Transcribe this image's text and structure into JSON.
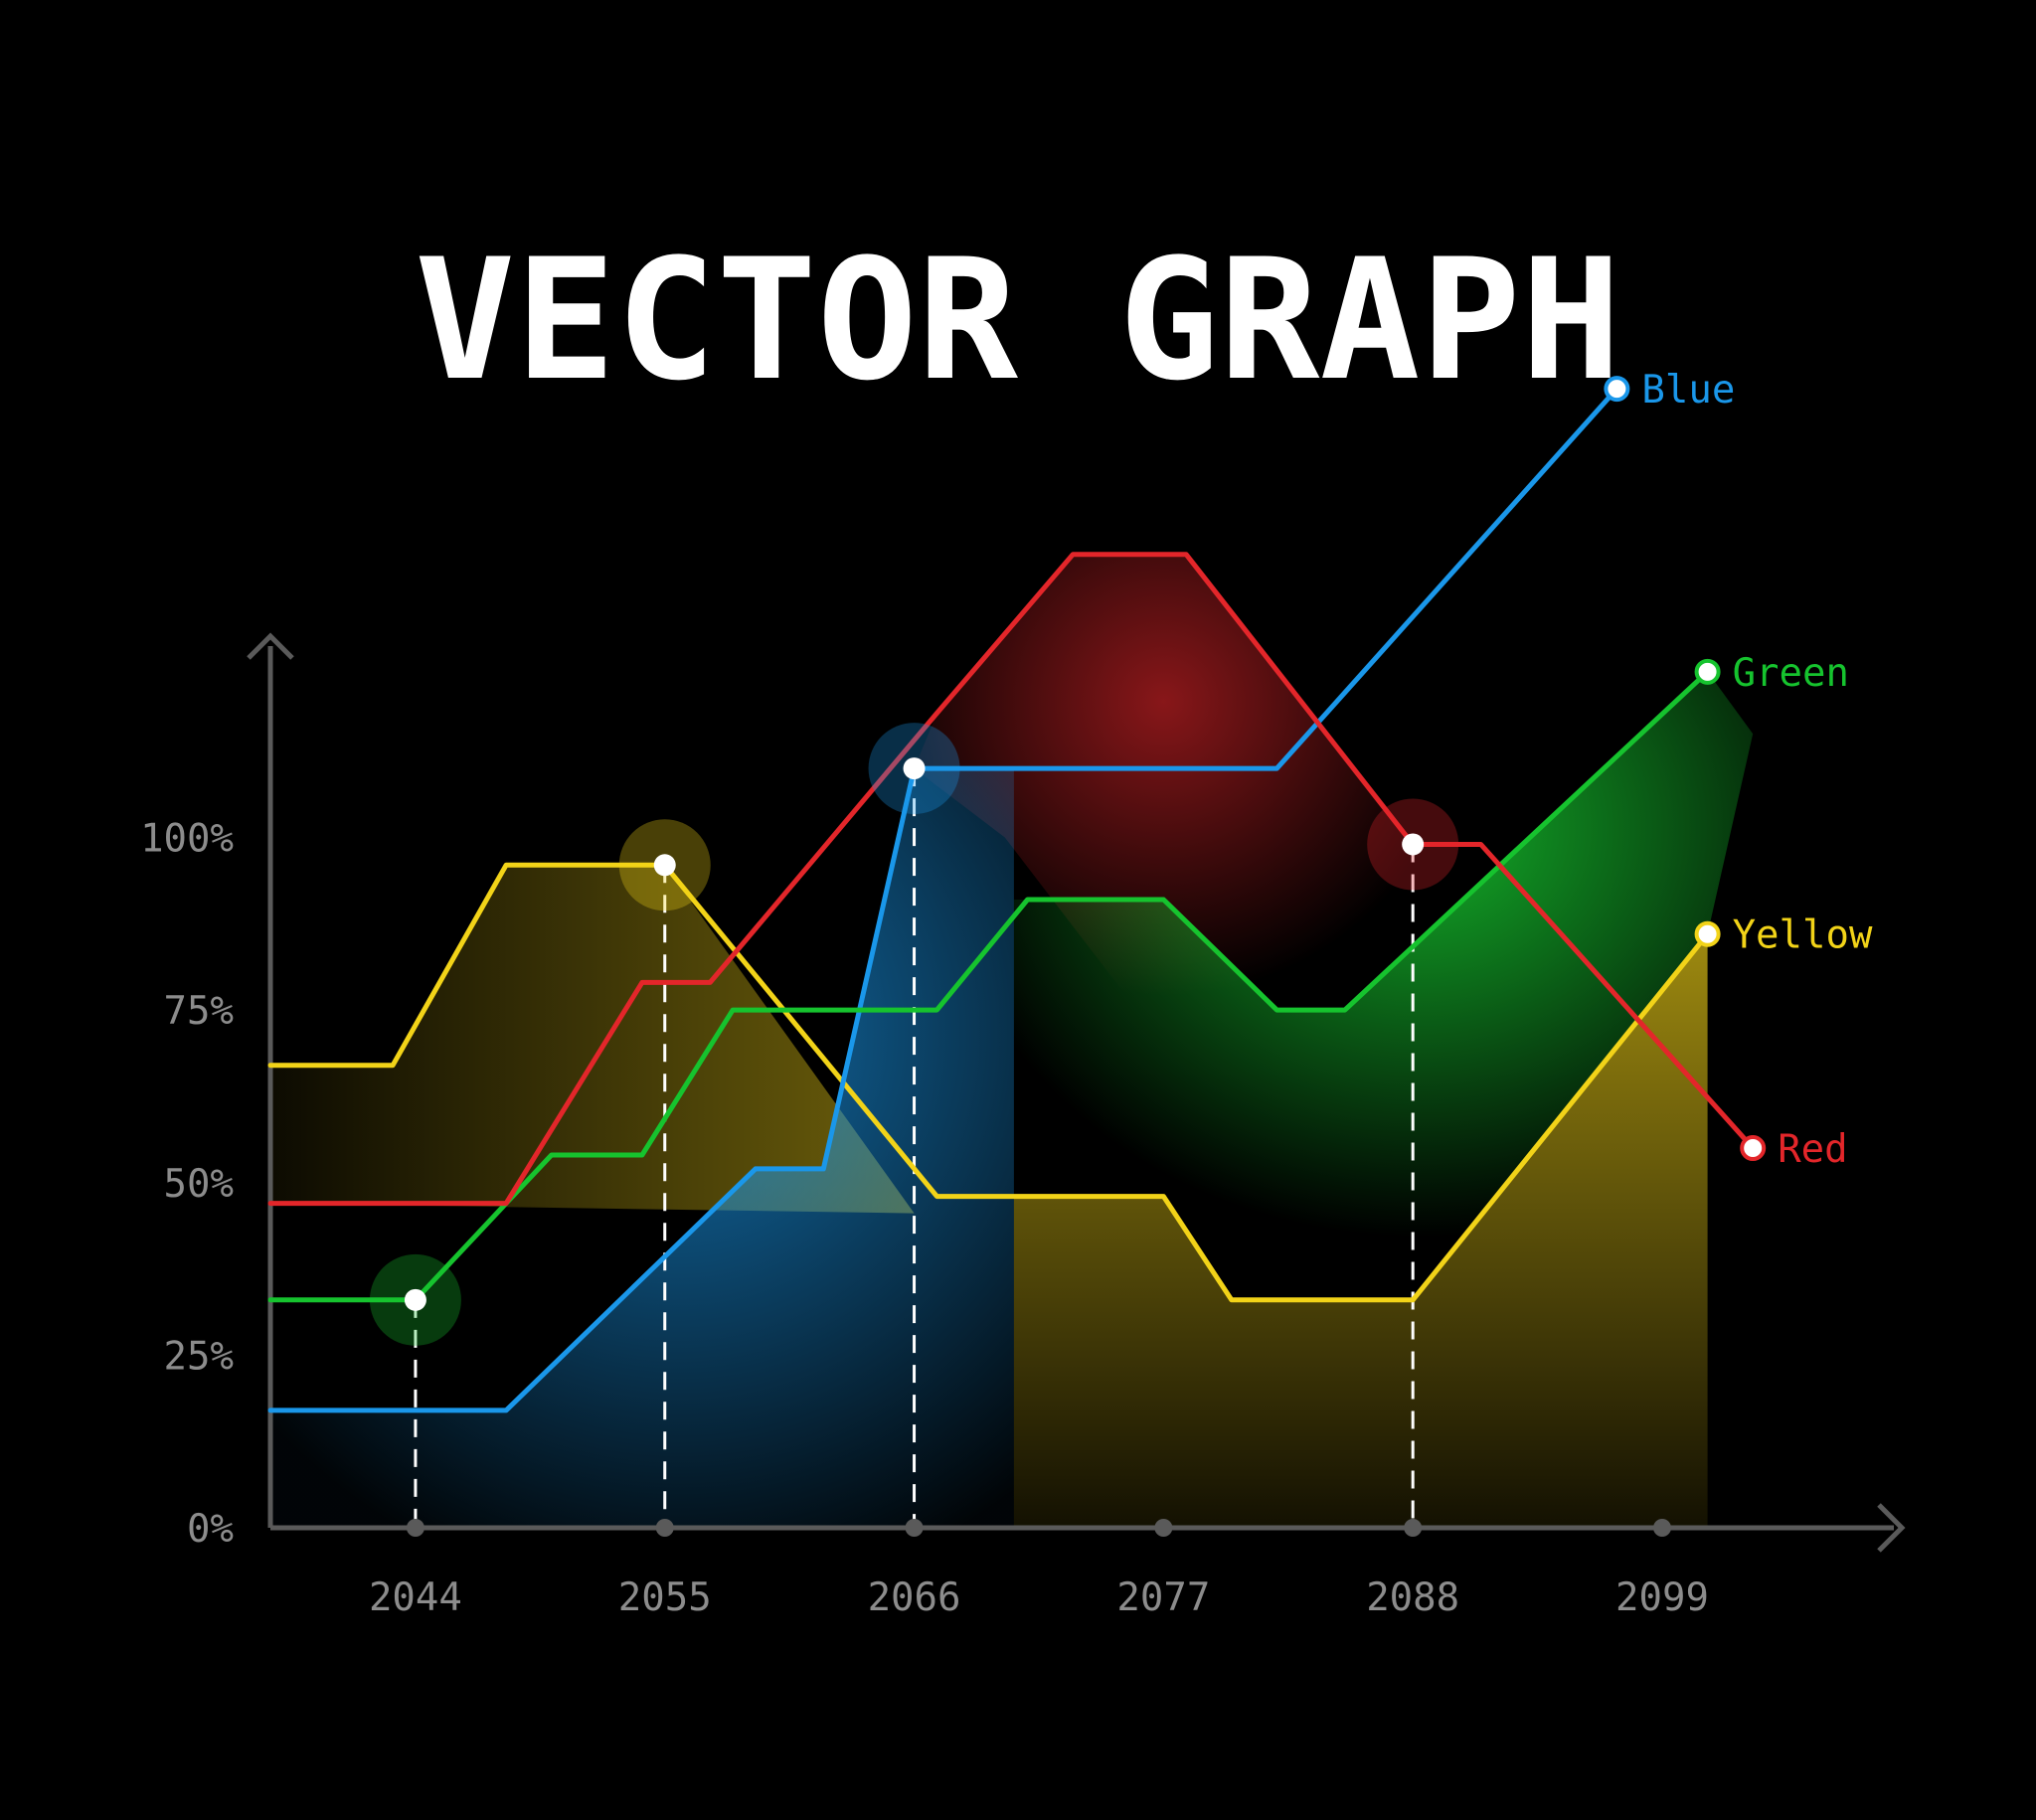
{
  "chart_data": {
    "type": "area",
    "title": "VECTOR GRAPH",
    "xlabel": "",
    "ylabel": "",
    "x_ticks": [
      "2044",
      "2055",
      "2066",
      "2077",
      "2088",
      "2099"
    ],
    "y_ticks": [
      "0%",
      "25%",
      "50%",
      "75%",
      "100%"
    ],
    "xlim": [
      2037.6,
      2109
    ],
    "ylim": [
      0,
      145
    ],
    "grid": false,
    "legend": "line-end",
    "series": [
      {
        "name": "Blue",
        "color": "#1a97ea",
        "points": [
          [
            2037.6,
            17
          ],
          [
            2048,
            17
          ],
          [
            2059,
            52
          ],
          [
            2062,
            52
          ],
          [
            2066,
            110
          ],
          [
            2082,
            110
          ],
          [
            2097,
            165
          ]
        ]
      },
      {
        "name": "Red",
        "color": "#e3262a",
        "points": [
          [
            2037.6,
            47
          ],
          [
            2048,
            47
          ],
          [
            2054,
            79
          ],
          [
            2057,
            79
          ],
          [
            2067,
            118
          ],
          [
            2073,
            141
          ],
          [
            2078,
            141
          ],
          [
            2088,
            99
          ],
          [
            2091,
            99
          ],
          [
            2103,
            55
          ]
        ]
      },
      {
        "name": "Green",
        "color": "#16c32e",
        "points": [
          [
            2037.6,
            33
          ],
          [
            2044,
            33
          ],
          [
            2050,
            54
          ],
          [
            2054,
            54
          ],
          [
            2058,
            75
          ],
          [
            2067,
            75
          ],
          [
            2071,
            91
          ],
          [
            2077,
            91
          ],
          [
            2082,
            75
          ],
          [
            2085,
            75
          ],
          [
            2101,
            124
          ]
        ]
      },
      {
        "name": "Yellow",
        "color": "#f2d318",
        "points": [
          [
            2037.6,
            67
          ],
          [
            2043,
            67
          ],
          [
            2048,
            96
          ],
          [
            2055,
            96
          ],
          [
            2067,
            48
          ],
          [
            2077,
            48
          ],
          [
            2080,
            33
          ],
          [
            2088,
            33
          ],
          [
            2101,
            86
          ]
        ]
      }
    ],
    "highlights": [
      {
        "series": "Green",
        "x": 2044,
        "y": 33
      },
      {
        "series": "Yellow",
        "x": 2055,
        "y": 96
      },
      {
        "series": "Blue",
        "x": 2066,
        "y": 110
      },
      {
        "series": "Red",
        "x": 2088,
        "y": 99
      }
    ]
  }
}
